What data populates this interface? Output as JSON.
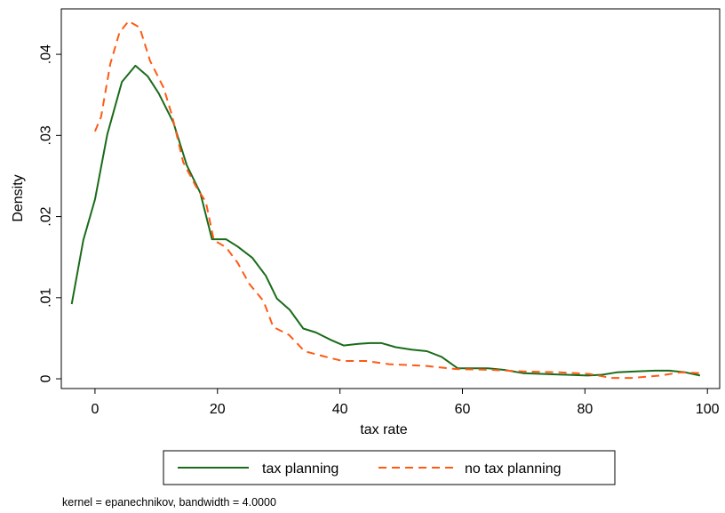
{
  "chart_data": {
    "type": "line",
    "xlabel": "tax rate",
    "ylabel": "Density",
    "note": "kernel = epanechnikov, bandwidth = 4.0000",
    "xlim": [
      -5.5,
      102
    ],
    "ylim": [
      -0.0012,
      0.0456
    ],
    "xticks": [
      0,
      20,
      40,
      60,
      80,
      100
    ],
    "yticks": [
      0,
      0.01,
      0.02,
      0.03,
      0.04
    ],
    "ytick_labels": [
      "0",
      ".01",
      ".02",
      ".03",
      ".04"
    ],
    "grid": false,
    "legend_position": "bottom",
    "series": [
      {
        "name": "tax planning",
        "color": "#1a6b1a",
        "dash": "solid",
        "points": [
          [
            -3.8,
            0.0092
          ],
          [
            -1.9,
            0.0171
          ],
          [
            0.0,
            0.0221
          ],
          [
            2.0,
            0.0301
          ],
          [
            4.4,
            0.0366
          ],
          [
            6.6,
            0.0386
          ],
          [
            8.6,
            0.0373
          ],
          [
            10.4,
            0.0352
          ],
          [
            12.8,
            0.0316
          ],
          [
            15.0,
            0.0263
          ],
          [
            17.2,
            0.0229
          ],
          [
            19.1,
            0.0172
          ],
          [
            21.4,
            0.0172
          ],
          [
            23.3,
            0.0163
          ],
          [
            25.7,
            0.0149
          ],
          [
            27.9,
            0.0127
          ],
          [
            29.7,
            0.0099
          ],
          [
            31.8,
            0.0085
          ],
          [
            34.0,
            0.0062
          ],
          [
            36.1,
            0.0057
          ],
          [
            38.5,
            0.0048
          ],
          [
            40.6,
            0.0041
          ],
          [
            43.0,
            0.0043
          ],
          [
            44.9,
            0.0044
          ],
          [
            46.8,
            0.0044
          ],
          [
            49.1,
            0.0039
          ],
          [
            51.7,
            0.0036
          ],
          [
            54.2,
            0.0034
          ],
          [
            56.6,
            0.0027
          ],
          [
            59.2,
            0.0013
          ],
          [
            61.6,
            0.0013
          ],
          [
            64.2,
            0.0013
          ],
          [
            66.8,
            0.0011
          ],
          [
            69.9,
            0.0007
          ],
          [
            73.3,
            0.0006
          ],
          [
            76.9,
            0.0005
          ],
          [
            80.4,
            0.0004
          ],
          [
            82.8,
            0.0005
          ],
          [
            85.2,
            0.0008
          ],
          [
            88.3,
            0.0009
          ],
          [
            91.5,
            0.001
          ],
          [
            93.8,
            0.001
          ],
          [
            96.4,
            0.0008
          ],
          [
            98.8,
            0.0004
          ]
        ]
      },
      {
        "name": "no tax planning",
        "color": "#ff5a14",
        "dash": "dashed",
        "points": [
          [
            0.0,
            0.0305
          ],
          [
            1.0,
            0.0323
          ],
          [
            2.5,
            0.0388
          ],
          [
            4.0,
            0.0427
          ],
          [
            5.5,
            0.0441
          ],
          [
            7.3,
            0.0433
          ],
          [
            9.0,
            0.0392
          ],
          [
            11.2,
            0.0359
          ],
          [
            12.6,
            0.0324
          ],
          [
            14.4,
            0.0267
          ],
          [
            16.5,
            0.0237
          ],
          [
            18.1,
            0.0218
          ],
          [
            19.4,
            0.0171
          ],
          [
            21.4,
            0.0162
          ],
          [
            23.3,
            0.0143
          ],
          [
            25.2,
            0.0117
          ],
          [
            27.5,
            0.0096
          ],
          [
            29.1,
            0.0064
          ],
          [
            31.7,
            0.0054
          ],
          [
            34.2,
            0.0034
          ],
          [
            37.2,
            0.0028
          ],
          [
            40.4,
            0.0022
          ],
          [
            44.2,
            0.0022
          ],
          [
            48.0,
            0.0018
          ],
          [
            53.9,
            0.0016
          ],
          [
            59.0,
            0.0012
          ],
          [
            64.7,
            0.0011
          ],
          [
            69.9,
            0.0009
          ],
          [
            75.9,
            0.0008
          ],
          [
            80.7,
            0.0006
          ],
          [
            84.3,
            0.0001
          ],
          [
            87.6,
            0.0001
          ],
          [
            92.3,
            0.0004
          ],
          [
            95.6,
            0.0008
          ],
          [
            99.0,
            0.0007
          ]
        ]
      }
    ]
  }
}
